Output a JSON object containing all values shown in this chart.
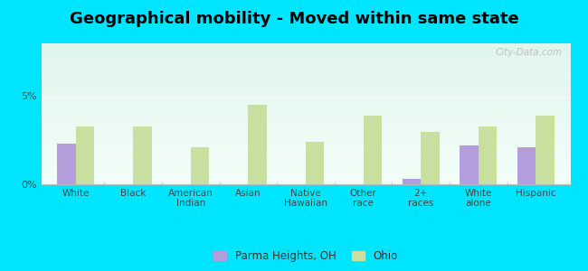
{
  "title": "Geographical mobility - Moved within same state",
  "categories": [
    "White",
    "Black",
    "American\nIndian",
    "Asian",
    "Native\nHawaiian",
    "Other\nrace",
    "2+\nraces",
    "White\nalone",
    "Hispanic"
  ],
  "parma_values": [
    2.3,
    0.0,
    0.0,
    0.0,
    0.0,
    0.0,
    0.3,
    2.2,
    2.1
  ],
  "ohio_values": [
    3.3,
    3.3,
    2.1,
    4.5,
    2.4,
    3.9,
    3.0,
    3.3,
    3.9
  ],
  "parma_color": "#b39ddb",
  "ohio_color": "#c8dfa0",
  "background_color": "#00e5ff",
  "bg_top_color": "#e8f5ee",
  "bg_bottom_color": "#f5fffa",
  "ylim": [
    0,
    8
  ],
  "ytick_vals": [
    0,
    5
  ],
  "ytick_labels": [
    "0%",
    "5%"
  ],
  "bar_width": 0.32,
  "legend_parma": "Parma Heights, OH",
  "legend_ohio": "Ohio",
  "watermark": "City-Data.com",
  "title_fontsize": 13,
  "tick_fontsize": 7.5
}
